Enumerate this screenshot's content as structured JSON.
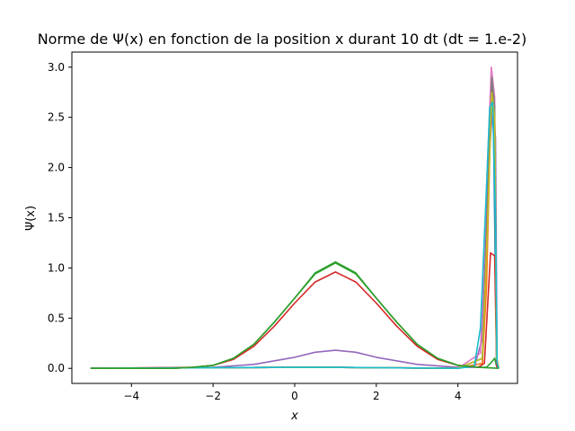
{
  "chart_data": {
    "type": "line",
    "title": "Norme de Ψ(x) en fonction de la position x durant 10 dt (dt = 1.e-2)",
    "xlabel": "x",
    "ylabel": "Ψ(x)",
    "xlim": [
      -5.46,
      5.46
    ],
    "ylim": [
      -0.15,
      3.15
    ],
    "xticks": [
      -4,
      -2,
      0,
      2,
      4
    ],
    "yticks": [
      0.0,
      0.5,
      1.0,
      1.5,
      2.0,
      2.5,
      3.0
    ],
    "xtick_labels": [
      "−4",
      "−2",
      "0",
      "2",
      "4"
    ],
    "ytick_labels": [
      "0.0",
      "0.5",
      "1.0",
      "1.5",
      "2.0",
      "2.5",
      "3.0"
    ],
    "grid": false,
    "legend": false,
    "series": [
      {
        "color": "#1f77b4",
        "points": [
          [
            -5,
            0
          ],
          [
            0,
            0.01
          ],
          [
            1,
            0.01
          ],
          [
            4,
            0
          ],
          [
            4.6,
            0.05
          ],
          [
            4.7,
            1.2
          ],
          [
            4.8,
            2.6
          ],
          [
            4.87,
            2.4
          ],
          [
            4.95,
            0.05
          ],
          [
            5,
            0
          ]
        ]
      },
      {
        "color": "#ff7f0e",
        "points": [
          [
            -5,
            0
          ],
          [
            0,
            0.01
          ],
          [
            1,
            0.01
          ],
          [
            4,
            0
          ],
          [
            4.6,
            0.05
          ],
          [
            4.7,
            0.8
          ],
          [
            4.82,
            2.8
          ],
          [
            4.9,
            2.5
          ],
          [
            4.95,
            0.1
          ],
          [
            5,
            0
          ]
        ]
      },
      {
        "color": "#2ca02c",
        "points": [
          [
            -5,
            0
          ],
          [
            -3,
            0
          ],
          [
            -2.5,
            0.01
          ],
          [
            -2,
            0.03
          ],
          [
            -1.5,
            0.1
          ],
          [
            -1,
            0.24
          ],
          [
            -0.5,
            0.46
          ],
          [
            0,
            0.7
          ],
          [
            0.5,
            0.95
          ],
          [
            1,
            1.06
          ],
          [
            1.5,
            0.95
          ],
          [
            2,
            0.7
          ],
          [
            2.5,
            0.46
          ],
          [
            3,
            0.24
          ],
          [
            3.5,
            0.1
          ],
          [
            4,
            0.03
          ],
          [
            4.5,
            0.01
          ],
          [
            4.7,
            0.01
          ],
          [
            4.8,
            0.05
          ],
          [
            4.9,
            0.1
          ],
          [
            4.95,
            0.02
          ],
          [
            5,
            0
          ]
        ]
      },
      {
        "color": "#d62728",
        "points": [
          [
            -5,
            0
          ],
          [
            -2.5,
            0.01
          ],
          [
            -2,
            0.03
          ],
          [
            -1.5,
            0.09
          ],
          [
            -1,
            0.22
          ],
          [
            -0.5,
            0.42
          ],
          [
            0,
            0.65
          ],
          [
            0.5,
            0.86
          ],
          [
            1,
            0.96
          ],
          [
            1.5,
            0.86
          ],
          [
            2,
            0.65
          ],
          [
            2.5,
            0.42
          ],
          [
            3,
            0.22
          ],
          [
            3.5,
            0.09
          ],
          [
            4,
            0.03
          ],
          [
            4.5,
            0.01
          ],
          [
            4.65,
            0.05
          ],
          [
            4.8,
            1.15
          ],
          [
            4.9,
            1.12
          ],
          [
            4.95,
            0.02
          ],
          [
            5,
            0
          ]
        ]
      },
      {
        "color": "#9467bd",
        "points": [
          [
            -5,
            0
          ],
          [
            -2,
            0.01
          ],
          [
            -1,
            0.04
          ],
          [
            0,
            0.11
          ],
          [
            0.5,
            0.16
          ],
          [
            1,
            0.18
          ],
          [
            1.5,
            0.16
          ],
          [
            2,
            0.11
          ],
          [
            3,
            0.04
          ],
          [
            4,
            0.01
          ],
          [
            4.4,
            0.01
          ],
          [
            4.6,
            0.3
          ],
          [
            4.75,
            2.0
          ],
          [
            4.85,
            2.6
          ],
          [
            4.92,
            2.3
          ],
          [
            4.96,
            0.05
          ],
          [
            5,
            0
          ]
        ]
      },
      {
        "color": "#8c564b",
        "points": [
          [
            -5,
            0
          ],
          [
            0,
            0.01
          ],
          [
            1,
            0.01
          ],
          [
            4,
            0
          ],
          [
            4.6,
            0.1
          ],
          [
            4.72,
            1.5
          ],
          [
            4.82,
            2.85
          ],
          [
            4.9,
            2.6
          ],
          [
            4.95,
            0.1
          ],
          [
            5,
            0
          ]
        ]
      },
      {
        "color": "#e377c2",
        "points": [
          [
            -5,
            0
          ],
          [
            0,
            0.01
          ],
          [
            1,
            0.01
          ],
          [
            4,
            0
          ],
          [
            4.55,
            0.15
          ],
          [
            4.7,
            1.8
          ],
          [
            4.82,
            3.0
          ],
          [
            4.9,
            2.7
          ],
          [
            4.95,
            0.1
          ],
          [
            5,
            0
          ]
        ]
      },
      {
        "color": "#7f7f7f",
        "points": [
          [
            -5,
            0
          ],
          [
            0,
            0.01
          ],
          [
            1,
            0.01
          ],
          [
            4,
            0
          ],
          [
            4.6,
            0.1
          ],
          [
            4.72,
            1.4
          ],
          [
            4.83,
            2.9
          ],
          [
            4.9,
            2.6
          ],
          [
            4.95,
            0.1
          ],
          [
            5,
            0
          ]
        ]
      },
      {
        "color": "#bcbd22",
        "points": [
          [
            -5,
            0
          ],
          [
            0,
            0.01
          ],
          [
            1,
            0.01
          ],
          [
            4,
            0
          ],
          [
            4.6,
            0.1
          ],
          [
            4.72,
            1.4
          ],
          [
            4.83,
            2.75
          ],
          [
            4.9,
            2.5
          ],
          [
            4.95,
            0.1
          ],
          [
            5,
            0
          ]
        ]
      },
      {
        "color": "#17becf",
        "points": [
          [
            -5,
            0
          ],
          [
            0,
            0.01
          ],
          [
            1,
            0.01
          ],
          [
            4,
            0
          ],
          [
            4.4,
            0.02
          ],
          [
            4.55,
            0.4
          ],
          [
            4.7,
            1.8
          ],
          [
            4.78,
            2.6
          ],
          [
            4.85,
            2.65
          ],
          [
            4.92,
            1.5
          ],
          [
            4.96,
            0.05
          ],
          [
            5,
            0
          ]
        ]
      },
      {
        "color": "#2ca02c",
        "points": [
          [
            -5,
            0
          ],
          [
            -3,
            0
          ],
          [
            -2.5,
            0.01
          ],
          [
            -2,
            0.03
          ],
          [
            -1.5,
            0.1
          ],
          [
            -1,
            0.24
          ],
          [
            -0.5,
            0.46
          ],
          [
            0,
            0.7
          ],
          [
            0.5,
            0.94
          ],
          [
            1,
            1.05
          ],
          [
            1.5,
            0.94
          ],
          [
            2,
            0.7
          ],
          [
            2.5,
            0.46
          ],
          [
            3,
            0.24
          ],
          [
            3.5,
            0.1
          ],
          [
            4,
            0.03
          ],
          [
            4.5,
            0.01
          ],
          [
            5,
            0
          ]
        ]
      }
    ]
  }
}
